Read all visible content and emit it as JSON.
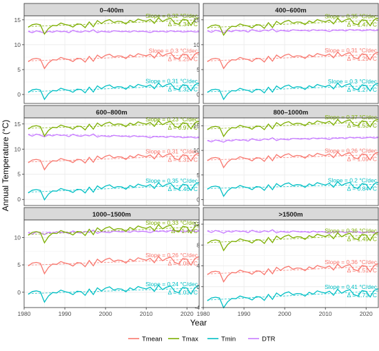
{
  "chart_data": {
    "type": "line",
    "ylabel": "Annual Temperature (°C)",
    "xlabel": "Year",
    "colors": {
      "Tmean": "#F8766D",
      "Tmax": "#7CAE00",
      "Tmin": "#00BFC4",
      "DTR": "#C77CFF"
    },
    "legend": {
      "position": "bottom",
      "entries": [
        "Tmean",
        "Tmax",
        "Tmin",
        "DTR"
      ]
    },
    "xlim": [
      1980,
      2023
    ],
    "x_ticks": [
      1980,
      1990,
      2000,
      2010,
      2020
    ],
    "panels": [
      {
        "title": "0–400m",
        "ylim": [
          -1.8,
          15.8
        ],
        "y_ticks": [
          0,
          5,
          10,
          15
        ],
        "base": {
          "Tmean": 6.6,
          "Tmax": 13.5,
          "Tmin": 0.4,
          "DTR": 12.6
        },
        "annotations": [
          {
            "series": "Tmax",
            "slope": "Slope = 0.32 °C/dec",
            "delta": "Δ = 1.34 °C"
          },
          {
            "series": "Tmean",
            "slope": "Slope = 0.3 °C/dec",
            "delta": "Δ = 1.25 °C"
          },
          {
            "series": "Tmin",
            "slope": "Slope = 0.31 °C/dec",
            "delta": "Δ = 1.32 °C"
          }
        ]
      },
      {
        "title": "400–600m",
        "ylim": [
          -1.8,
          15.8
        ],
        "y_ticks": [
          0,
          5,
          10,
          15
        ],
        "base": {
          "Tmean": 6.6,
          "Tmax": 13.3,
          "Tmin": 0.4,
          "DTR": 12.7
        },
        "annotations": [
          {
            "series": "Tmax",
            "slope": "Slope = 0.35 °C/dec",
            "delta": "Δ = 1.47 °C"
          },
          {
            "series": "Tmean",
            "slope": "Slope = 0.31 °C/dec",
            "delta": "Δ = 1.29 °C"
          },
          {
            "series": "Tmin",
            "slope": "Slope = 0.3 °C/dec",
            "delta": "Δ = 1.27 °C"
          }
        ]
      },
      {
        "title": "600–800m",
        "ylim": [
          -1.2,
          16.2
        ],
        "y_ticks": [
          0,
          5,
          10,
          15
        ],
        "base": {
          "Tmean": 7.3,
          "Tmax": 14.0,
          "Tmin": 1.3,
          "DTR": 12.8
        },
        "annotations": [
          {
            "series": "Tmax",
            "slope": "Slope = 0.23 °C/dec",
            "delta": "Δ = 0.97 °C"
          },
          {
            "series": "Tmean",
            "slope": "Slope = 0.31 °C/dec",
            "delta": "Δ = 1.31 °C"
          },
          {
            "series": "Tmin",
            "slope": "Slope = 0.35 °C/dec",
            "delta": "Δ = 1.46 °C"
          }
        ]
      },
      {
        "title": "800–1000m",
        "ylim": [
          -1.2,
          16.6
        ],
        "y_ticks": [
          0,
          5,
          10,
          15
        ],
        "base": {
          "Tmean": 7.9,
          "Tmax": 14.2,
          "Tmin": 2.1,
          "DTR": 11.9
        },
        "annotations": [
          {
            "series": "Tmax",
            "slope": "Slope = 0.37 °C/dec",
            "delta": "Δ = 1.53 °C"
          },
          {
            "series": "Tmean",
            "slope": "Slope = 0.26 °C/dec",
            "delta": "Δ = 1.09 °C"
          },
          {
            "series": "Tmin",
            "slope": "Slope = 0.2 °C/dec",
            "delta": "Δ = 0.84 °C"
          }
        ]
      },
      {
        "title": "1000–1500m",
        "ylim": [
          -2.8,
          13.2
        ],
        "y_ticks": [
          0,
          5,
          10
        ],
        "base": {
          "Tmean": 4.8,
          "Tmax": 10.4,
          "Tmin": -0.4,
          "DTR": 10.8
        },
        "annotations": [
          {
            "series": "Tmax",
            "slope": "Slope = 0.33 °C/dec",
            "delta": "Δ = 1.4 °C"
          },
          {
            "series": "Tmean",
            "slope": "Slope = 0.26 °C/dec",
            "delta": "Δ = 1.08 °C"
          },
          {
            "series": "Tmin",
            "slope": "Slope = 0.24 °C/dec",
            "delta": "Δ = 1.03 °C"
          }
        ]
      },
      {
        "title": ">1500m",
        "ylim": [
          -4.0,
          12.8
        ],
        "y_ticks": [
          -4,
          0,
          4,
          8,
          12
        ],
        "base": {
          "Tmean": 2.3,
          "Tmax": 8.3,
          "Tmin": -2.7,
          "DTR": 10.6
        },
        "annotations": [
          {
            "series": "Tmax",
            "slope": "Slope = 0.36 °C/dec",
            "delta": "Δ = 1.49 °C"
          },
          {
            "series": "Tmean",
            "slope": "Slope = 0.36 °C/dec",
            "delta": "Δ = 1.51 °C"
          },
          {
            "series": "Tmin",
            "slope": "Slope = 0.41 °C/dec",
            "delta": "Δ = 1.73 °C"
          }
        ]
      }
    ],
    "slopes": [
      {
        "Tmean": 0.03,
        "Tmax": 0.032,
        "Tmin": 0.031,
        "DTR": 0.001
      },
      {
        "Tmean": 0.031,
        "Tmax": 0.035,
        "Tmin": 0.03,
        "DTR": 0.005
      },
      {
        "Tmean": 0.031,
        "Tmax": 0.023,
        "Tmin": 0.035,
        "DTR": -0.012
      },
      {
        "Tmean": 0.026,
        "Tmax": 0.037,
        "Tmin": 0.02,
        "DTR": 0.017
      },
      {
        "Tmean": 0.026,
        "Tmax": 0.033,
        "Tmin": 0.024,
        "DTR": 0.009
      },
      {
        "Tmean": 0.036,
        "Tmax": 0.036,
        "Tmin": 0.041,
        "DTR": -0.005
      }
    ],
    "anomaly_common": [
      0.0,
      0.5,
      0.6,
      0.4,
      -1.5,
      -0.4,
      0.2,
      0.1,
      0.6,
      0.3,
      0.1,
      -0.3,
      0.3,
      0.2,
      -0.5,
      0.6,
      -0.4,
      0.8,
      0.2,
      0.7,
      0.9,
      0.3,
      0.5,
      0.4,
      -0.1,
      0.6,
      0.2,
      0.8,
      0.5,
      0.3,
      0.6,
      -0.2,
      0.9,
      0.1,
      0.5,
      0.7,
      -0.3,
      -0.6,
      0.4,
      0.2,
      -0.9,
      0.3,
      0.6,
      -0.5
    ],
    "anomaly_dtr": [
      0.1,
      -0.2,
      0.2,
      0.0,
      -0.3,
      0.1,
      -0.1,
      0.2,
      0.0,
      0.1,
      -0.2,
      0.3,
      0.0,
      -0.1,
      0.2,
      0.0,
      0.4,
      -0.2,
      0.1,
      0.0,
      -0.1,
      0.2,
      0.1,
      0.0,
      0.1,
      -0.1,
      0.2,
      0.0,
      0.1,
      0.0,
      -0.2,
      0.1,
      0.0,
      0.1,
      -0.1,
      0.2,
      0.0,
      0.1,
      -0.1,
      0.0,
      0.1,
      -0.1,
      0.0,
      0.1
    ]
  }
}
